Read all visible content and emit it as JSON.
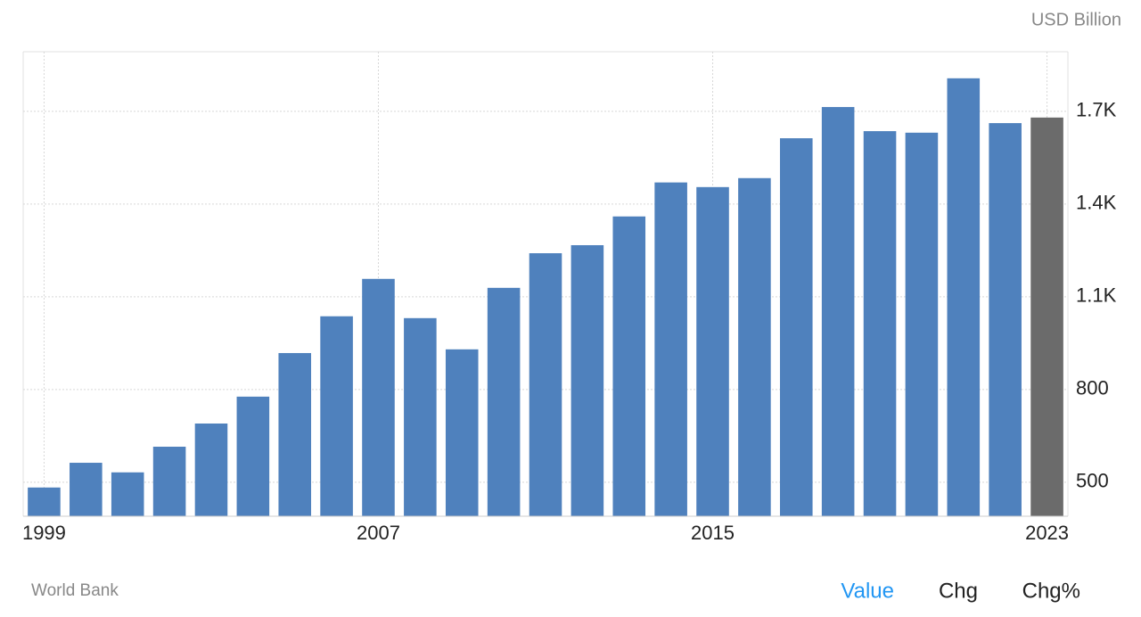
{
  "chart_data": {
    "type": "bar",
    "unit_label": "USD Billion",
    "source": "World Bank",
    "x": [
      1999,
      2000,
      2001,
      2002,
      2003,
      2004,
      2005,
      2006,
      2007,
      2008,
      2009,
      2010,
      2011,
      2012,
      2013,
      2014,
      2015,
      2016,
      2017,
      2018,
      2019,
      2020,
      2021,
      2022,
      2023
    ],
    "values": [
      483,
      563,
      532,
      615,
      690,
      777,
      918,
      1037,
      1158,
      1031,
      930,
      1129,
      1241,
      1267,
      1360,
      1470,
      1455,
      1484,
      1613,
      1714,
      1636,
      1631,
      1807,
      1662,
      1680
    ],
    "colors": [
      "#4f81bd",
      "#4f81bd",
      "#4f81bd",
      "#4f81bd",
      "#4f81bd",
      "#4f81bd",
      "#4f81bd",
      "#4f81bd",
      "#4f81bd",
      "#4f81bd",
      "#4f81bd",
      "#4f81bd",
      "#4f81bd",
      "#4f81bd",
      "#4f81bd",
      "#4f81bd",
      "#4f81bd",
      "#4f81bd",
      "#4f81bd",
      "#4f81bd",
      "#4f81bd",
      "#4f81bd",
      "#4f81bd",
      "#4f81bd",
      "#6b6b6b"
    ],
    "xlim": [
      1998.5,
      2023.5
    ],
    "xticks": [
      1999,
      2007,
      2015,
      2023
    ],
    "ylim": [
      390,
      1893
    ],
    "yticks": [
      500,
      800,
      {
        "value": 1100,
        "label": "1.1K"
      },
      {
        "value": 1400,
        "label": "1.4K"
      },
      {
        "value": 1700,
        "label": "1.7K"
      }
    ],
    "grid": true
  },
  "tabs": [
    "Value",
    "Chg",
    "Chg%"
  ],
  "active_tab": 0
}
